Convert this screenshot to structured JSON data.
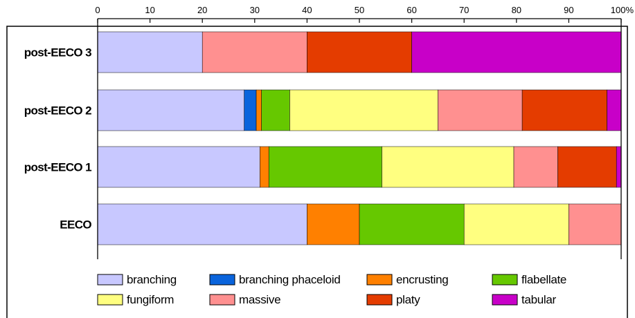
{
  "chart_data": {
    "type": "bar",
    "orientation": "horizontal",
    "stacked": true,
    "categories": [
      "post-EECO 3",
      "post-EECO 2",
      "post-EECO 1",
      "EECO"
    ],
    "series": [
      {
        "name": "branching",
        "color": "#c8c8ff",
        "values": [
          20,
          28,
          31,
          40
        ]
      },
      {
        "name": "branching phaceloid",
        "color": "#0a64dc",
        "values": [
          0,
          2.3,
          0,
          0
        ]
      },
      {
        "name": "encrusting",
        "color": "#ff8000",
        "values": [
          0,
          1,
          1.7,
          10
        ]
      },
      {
        "name": "flabellate",
        "color": "#66c800",
        "values": [
          0,
          5.4,
          21.6,
          20
        ]
      },
      {
        "name": "fungiform",
        "color": "#ffff80",
        "values": [
          0,
          28.3,
          25.2,
          20
        ]
      },
      {
        "name": "massive",
        "color": "#ff9090",
        "values": [
          20,
          16.1,
          8.4,
          10
        ]
      },
      {
        "name": "platy",
        "color": "#e43c00",
        "values": [
          20,
          16.2,
          11.2,
          0
        ]
      },
      {
        "name": "tabular",
        "color": "#c800c8",
        "values": [
          40,
          2.7,
          0.9,
          0
        ]
      }
    ],
    "x_ticks": [
      "0",
      "10",
      "20",
      "30",
      "40",
      "50",
      "60",
      "70",
      "80",
      "90",
      "100%"
    ],
    "xlim": [
      0,
      100
    ],
    "grid": false,
    "legend_position": "bottom"
  }
}
